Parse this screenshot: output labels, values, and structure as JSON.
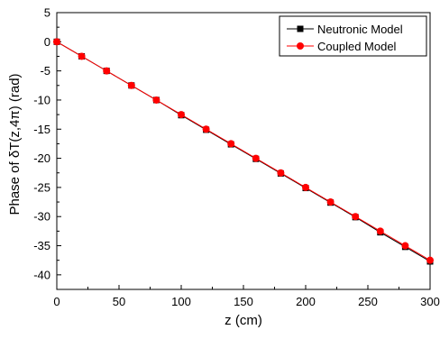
{
  "chart_data": {
    "type": "line",
    "title": "",
    "xlabel": "z (cm)",
    "ylabel": "Phase of δT(z,4π) (rad)",
    "xlim": [
      0,
      300
    ],
    "ylim": [
      -42.5,
      5
    ],
    "xticks": [
      0,
      50,
      100,
      150,
      200,
      250,
      300
    ],
    "yticks": [
      5,
      0,
      -5,
      -10,
      -15,
      -20,
      -25,
      -30,
      -35,
      -40
    ],
    "grid": false,
    "legend_position": "top-right",
    "series": [
      {
        "name": "Neutronic Model",
        "color": "#000000",
        "marker": "square",
        "x": [
          0,
          20,
          40,
          60,
          80,
          100,
          120,
          140,
          160,
          180,
          200,
          220,
          240,
          260,
          280,
          300
        ],
        "y": [
          0,
          -2.5,
          -5.0,
          -7.5,
          -10.0,
          -12.6,
          -15.1,
          -17.6,
          -20.1,
          -22.6,
          -25.1,
          -27.6,
          -30.1,
          -32.7,
          -35.2,
          -37.7
        ]
      },
      {
        "name": "Coupled Model",
        "color": "#ff0000",
        "marker": "circle",
        "x": [
          0,
          20,
          40,
          60,
          80,
          100,
          120,
          140,
          160,
          180,
          200,
          220,
          240,
          260,
          280,
          300
        ],
        "y": [
          0,
          -2.5,
          -5.0,
          -7.5,
          -10.0,
          -12.5,
          -15.0,
          -17.5,
          -20.0,
          -22.5,
          -25.0,
          -27.5,
          -30.0,
          -32.5,
          -35.0,
          -37.5
        ]
      }
    ]
  }
}
